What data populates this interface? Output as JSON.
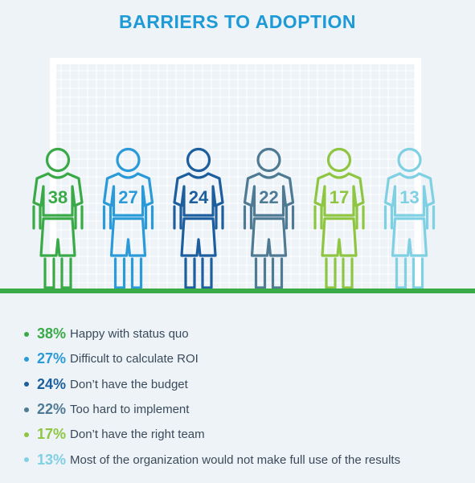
{
  "chart_data": {
    "type": "pictograph",
    "title": "BARRIERS TO ADOPTION",
    "unit": "%",
    "categories": [
      "Happy with status quo",
      "Difficult to calculate ROI",
      "Don’t have the budget",
      "Too hard to implement",
      "Don’t have the right team",
      "Most of the organization would not make full use of the results"
    ],
    "values": [
      38,
      27,
      24,
      22,
      17,
      13
    ],
    "colors": [
      "#3aaa48",
      "#2a9ad8",
      "#1d5f9e",
      "#4f7a94",
      "#8ec641",
      "#7fd0e3"
    ],
    "legend_placement": "bottom"
  },
  "scene": {
    "goal_color": "#ffffff",
    "ground_color": "#3aaa48"
  }
}
